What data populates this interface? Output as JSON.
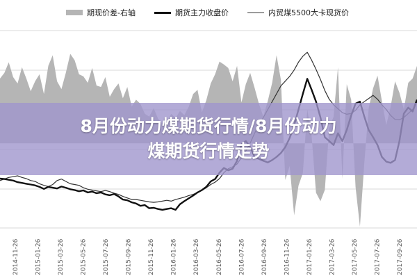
{
  "banner": {
    "line1": "8月份动力煤期货行情/8月份动力",
    "line2": "煤期货行情走势"
  },
  "chart_data": {
    "type": "line",
    "title": "",
    "legend_position": "top",
    "legend": [
      {
        "label": "期现价差-右轴",
        "style": "area",
        "color": "#b5b5b5"
      },
      {
        "label": "期货主力收盘价",
        "style": "line-bold",
        "color": "#111111"
      },
      {
        "label": "内贸煤5500大卡现货价",
        "style": "line-thin",
        "color": "#333333"
      }
    ],
    "x_tick_labels": [
      "2014-11-26",
      "2015-01-26",
      "2015-03-26",
      "2015-05-26",
      "2015-07-26",
      "2015-09-26",
      "2015-11-26",
      "2016-01-26",
      "2016-03-26",
      "2016-05-26",
      "2016-07-26",
      "2016-09-26",
      "2016-11-26",
      "2017-01-26",
      "2017-03-26",
      "2017-05-26",
      "2017-07-26",
      "2017-09-26"
    ],
    "grid": {
      "horizontal": true,
      "vertical": false
    },
    "series": [
      {
        "name": "期现价差-右轴",
        "kind": "area",
        "values": [
          92,
          100,
          115,
          94,
          85,
          108,
          92,
          74,
          88,
          98,
          70,
          110,
          125,
          88,
          77,
          100,
          127,
          118,
          98,
          95,
          86,
          107,
          82,
          80,
          94,
          66,
          77,
          85,
          64,
          80,
          52,
          62,
          56,
          42,
          38,
          50,
          35,
          28,
          30,
          42,
          36,
          46,
          40,
          52,
          70,
          76,
          44,
          61,
          85,
          98,
          116,
          112,
          107,
          88,
          110,
          58,
          84,
          100,
          79,
          56,
          38,
          60,
          86,
          125,
          90,
          -52,
          -32,
          -102,
          -60,
          -42,
          48,
          10,
          -70,
          -82,
          -66,
          22,
          38,
          108,
          -50,
          84,
          62,
          -62,
          -118,
          -28,
          50,
          78,
          96,
          60,
          26,
          52,
          88,
          72,
          48,
          86,
          92,
          110
        ]
      },
      {
        "name": "期货主力收盘价",
        "kind": "line",
        "values": [
          425,
          424,
          422,
          420,
          416,
          414,
          412,
          410,
          408,
          404,
          399,
          404,
          402,
          400,
          405,
          402,
          398,
          396,
          393,
          395,
          390,
          392,
          388,
          390,
          385,
          383,
          386,
          380,
          372,
          370,
          365,
          362,
          356,
          358,
          350,
          351,
          348,
          346,
          348,
          350,
          346,
          360,
          368,
          375,
          382,
          390,
          396,
          404,
          418,
          424,
          440,
          452,
          446,
          450,
          470,
          512,
          520,
          505,
          480,
          475,
          470,
          466,
          472,
          480,
          490,
          505,
          528,
          560,
          600,
          640,
          678,
          650,
          620,
          580,
          530,
          520,
          510,
          540,
          520,
          548,
          585,
          615,
          620,
          582,
          548,
          530,
          510,
          480,
          468,
          465,
          472,
          520,
          590,
          605,
          595,
          625
        ]
      },
      {
        "name": "内贸煤5500大卡现货价",
        "kind": "line",
        "values": [
          420,
          424,
          428,
          430,
          432,
          428,
          425,
          420,
          418,
          412,
          408,
          405,
          410,
          420,
          424,
          418,
          412,
          410,
          408,
          402,
          398,
          396,
          394,
          392,
          395,
          392,
          388,
          385,
          380,
          376,
          372,
          372,
          370,
          368,
          366,
          365,
          366,
          368,
          370,
          368,
          372,
          375,
          378,
          382,
          385,
          390,
          395,
          402,
          410,
          416,
          425,
          440,
          450,
          455,
          462,
          478,
          495,
          515,
          540,
          560,
          580,
          600,
          620,
          640,
          660,
          672,
          684,
          700,
          720,
          735,
          745,
          725,
          702,
          676,
          648,
          626,
          612,
          602,
          592,
          588,
          590,
          598,
          612,
          620,
          628,
          636,
          626,
          612,
          600,
          585,
          575,
          574,
          580,
          590,
          600,
          618
        ]
      }
    ]
  }
}
